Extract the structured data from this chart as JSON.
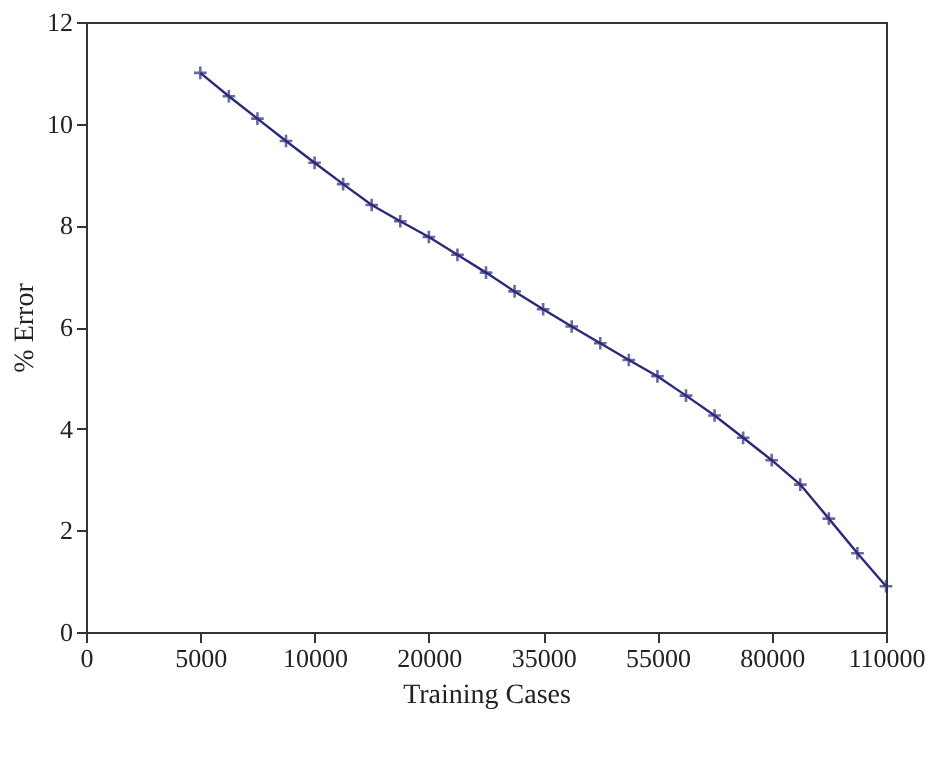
{
  "chart_data": {
    "type": "line",
    "xlabel": "Training Cases",
    "ylabel": "% Error",
    "categories": [
      "0",
      null,
      null,
      null,
      "5000",
      null,
      null,
      null,
      "10000",
      null,
      null,
      null,
      "20000",
      null,
      null,
      null,
      "35000",
      null,
      null,
      null,
      "55000",
      null,
      null,
      null,
      "80000",
      null,
      null,
      null,
      "110000"
    ],
    "ylim": [
      0,
      12
    ],
    "yticks": [
      0,
      2,
      4,
      6,
      8,
      10,
      12
    ],
    "grid": false,
    "marker": "cross",
    "line_style": "solid",
    "series": [
      {
        "color": "#2b2a7a",
        "values": [
          null,
          null,
          null,
          null,
          11.0,
          10.54,
          10.1,
          9.66,
          9.23,
          8.81,
          8.4,
          8.08,
          7.77,
          7.42,
          7.07,
          6.7,
          6.35,
          6.01,
          5.68,
          5.35,
          5.03,
          4.65,
          4.26,
          3.82,
          3.38,
          2.9,
          2.23,
          1.55,
          0.9
        ]
      }
    ]
  }
}
